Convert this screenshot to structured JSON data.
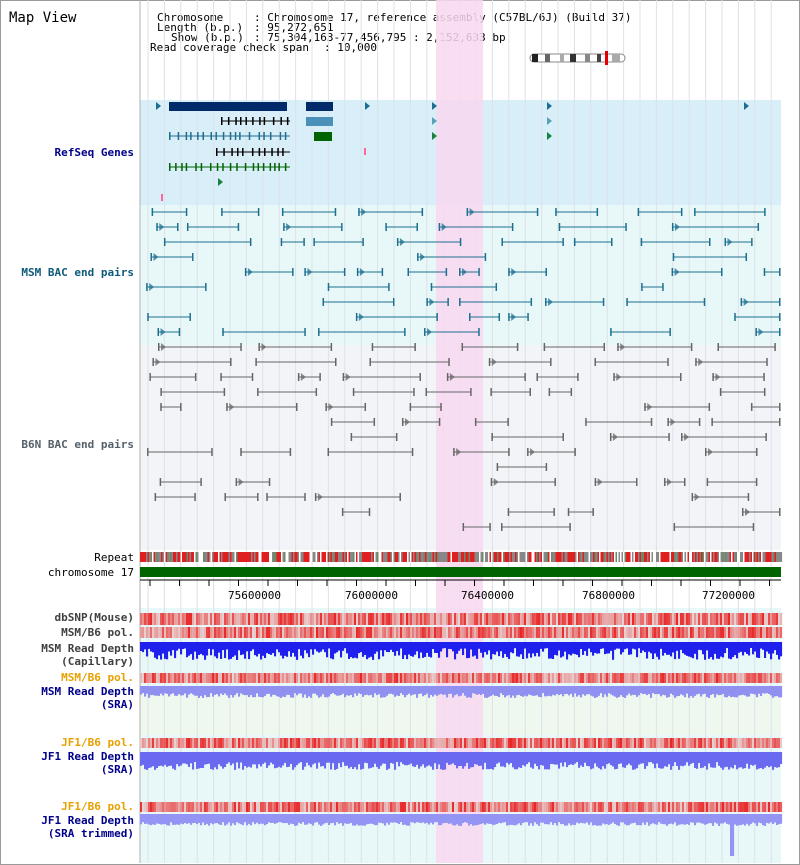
{
  "header": {
    "title": "Map View",
    "chromosome_key": "Chromosome",
    "chromosome_val": ": Chromosome 17, reference assembly (C57BL/6J) (Build 37)",
    "length_key": "Length (b.p.)",
    "length_val": ": 95,272,651",
    "show_key": "Show (b.p.)",
    "show_val": ": 75,304,163-77,456,795 : 2,152,633 bp",
    "coverage_key": "Read coverage check span",
    "coverage_val": ": 10,000"
  },
  "tracks": {
    "refseq": "RefSeq Genes",
    "msm_bac": "MSM BAC end pairs",
    "b6n_bac": "B6N BAC end pairs",
    "repeat": "Repeat",
    "chromosome": "chromosome 17",
    "dbsnp": "dbSNP(Mouse)",
    "msm_b6_pol_1": "MSM/B6 pol.",
    "msm_read_depth_cap_1": "MSM Read Depth",
    "msm_read_depth_cap_2": "(Capillary)",
    "msm_b6_pol_2": "MSM/B6 pol.",
    "msm_read_depth_sra_1": "MSM Read Depth",
    "msm_read_depth_sra_2": "(SRA)",
    "jf1_b6_pol_1": "JF1/B6 pol.",
    "jf1_read_depth_sra_1": "JF1 Read Depth",
    "jf1_read_depth_sra_2": "(SRA)",
    "jf1_b6_pol_2": "JF1/B6 pol.",
    "jf1_read_depth_trim_1": "JF1 Read Depth",
    "jf1_read_depth_trim_2": "(SRA trimmed)"
  },
  "axis": {
    "ticks": [
      "75600000",
      "76000000",
      "76400000",
      "76800000",
      "77200000"
    ]
  },
  "colors": {
    "highlight": "#f8d8f0",
    "refseq_bg": "#d8eef8",
    "light_bg": "#e8f8f8",
    "gene_dark": "#002a6a",
    "msm_feature": "#1e6f8f",
    "b6n_feature": "#666666",
    "chromosome_bar": "#006400",
    "pol_red": "#e8202a",
    "depth_blue": "#1a1aff"
  }
}
